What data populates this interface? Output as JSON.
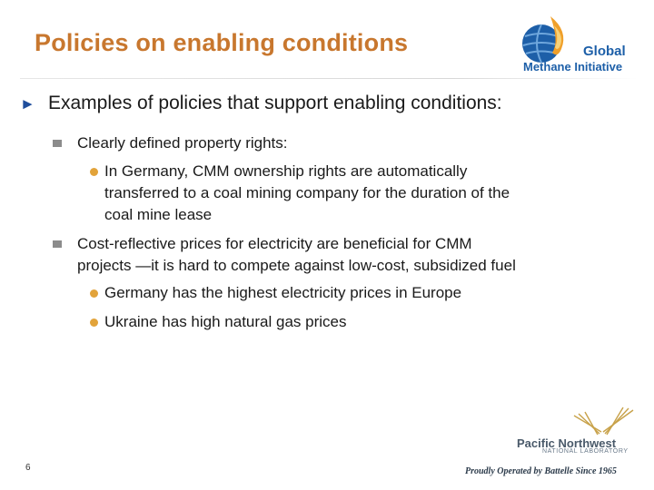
{
  "slide": {
    "title": "Policies on enabling conditions",
    "page_number": "6"
  },
  "logos": {
    "gmi_line1": "Global",
    "gmi_line2": "Methane Initiative",
    "pnnl_name": "Pacific Northwest",
    "pnnl_sub": "NATIONAL LABORATORY",
    "battelle": "Proudly Operated by Battelle Since 1965"
  },
  "content": {
    "main_bullet": "Examples of policies that support enabling conditions:",
    "items": [
      {
        "text_lines": [
          "Clearly defined property rights:"
        ],
        "sub": [
          {
            "text_lines": [
              "In Germany, CMM ownership rights are automatically",
              "transferred to a coal mining company for the duration of the",
              "coal mine lease"
            ]
          }
        ]
      },
      {
        "text_lines": [
          "Cost-reflective prices for electricity are beneficial for CMM",
          "projects —it is hard to compete against low-cost, subsidized fuel"
        ],
        "sub": [
          {
            "text_lines": [
              "Germany has the highest electricity prices in Europe"
            ]
          },
          {
            "text_lines": [
              "Ukraine has high natural gas prices"
            ]
          }
        ]
      }
    ]
  },
  "colors": {
    "title": "#c8772e",
    "main_marker": "#1f4e9c",
    "sub_marker": "#8c8c8c",
    "dot_marker": "#e2a33a"
  }
}
